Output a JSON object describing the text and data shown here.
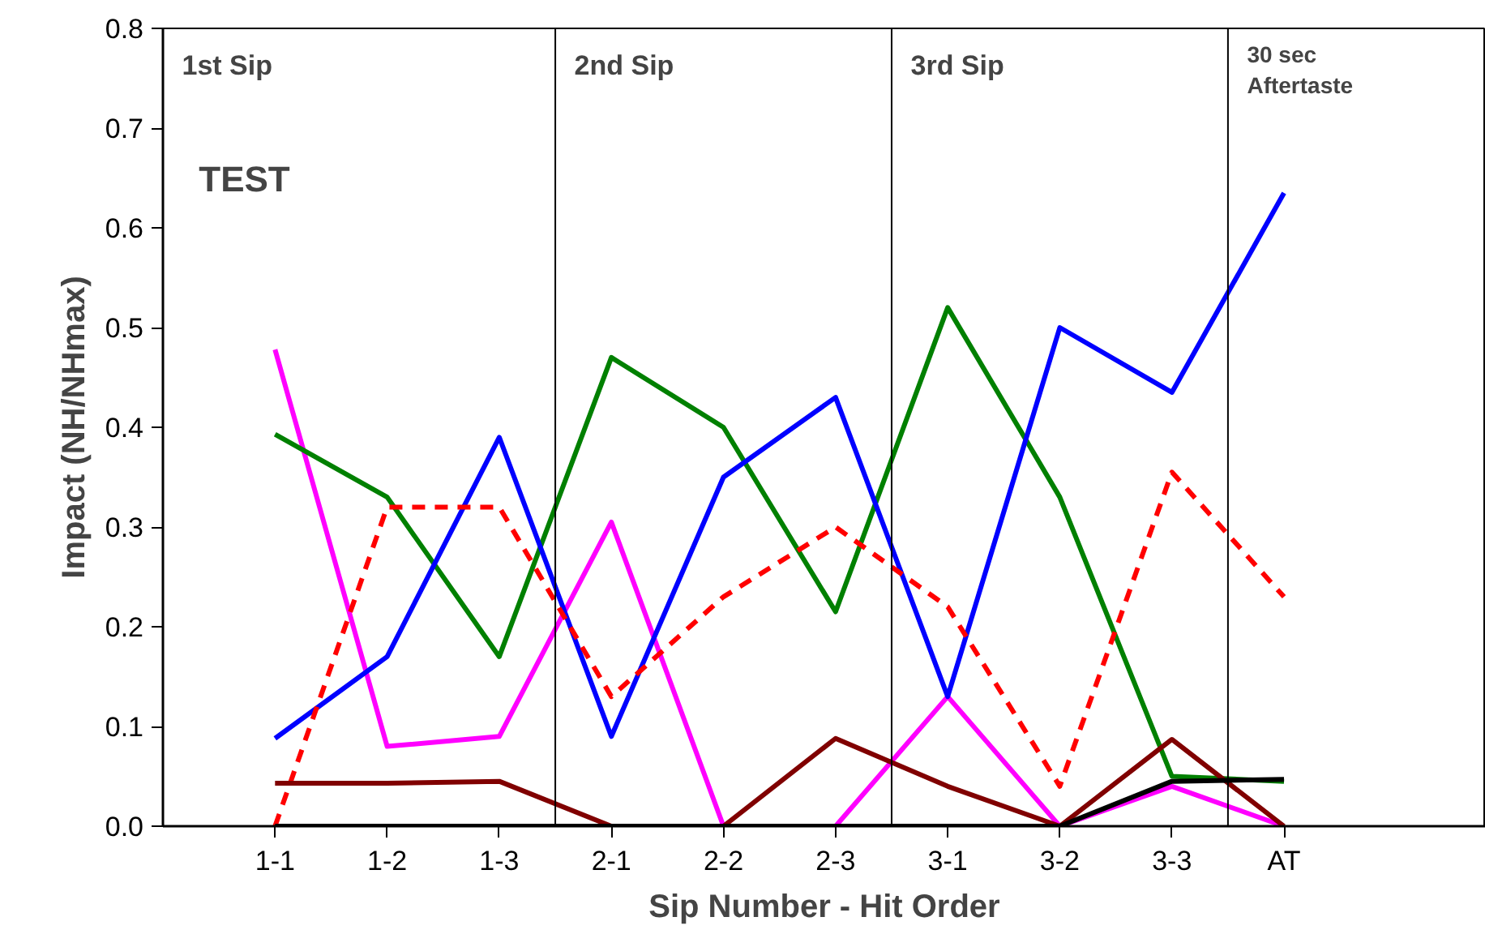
{
  "chart_data": {
    "type": "line",
    "xlabel": "Sip Number - Hit Order",
    "ylabel": "Impact (NH/NHmax)",
    "categories": [
      "1-1",
      "1-2",
      "1-3",
      "2-1",
      "2-2",
      "2-3",
      "3-1",
      "3-2",
      "3-3",
      "AT"
    ],
    "ylim": [
      0,
      0.8
    ],
    "yticks": [
      {
        "value": 0,
        "label": "0.0"
      },
      0.1,
      0.2,
      0.3,
      0.4,
      0.5,
      0.6,
      0.7,
      0.8
    ],
    "series": [
      {
        "color": "#ff00ff",
        "values": [
          0.478,
          0.08,
          0.09,
          0.305,
          0,
          0,
          0.13,
          0,
          0.04,
          0
        ]
      },
      {
        "color": "#008000",
        "values": [
          0.393,
          0.33,
          0.17,
          0.47,
          0.4,
          0.215,
          0.52,
          0.33,
          0.05,
          0.045
        ]
      },
      {
        "color": "#0000ff",
        "values": [
          0.088,
          0.17,
          0.39,
          0.09,
          0.35,
          0.43,
          0.13,
          0.5,
          0.435,
          0.635
        ]
      },
      {
        "color": "#ff0000",
        "line_style": "dashed",
        "values": [
          0,
          0.32,
          0.32,
          0.13,
          0.23,
          0.3,
          0.22,
          0.04,
          0.355,
          0.23
        ]
      },
      {
        "color": "#800000",
        "values": [
          0.043,
          0.043,
          0.045,
          0,
          0,
          0.088,
          0.04,
          0,
          0.087,
          0
        ]
      },
      {
        "color": "#000000",
        "values": [
          0,
          0,
          0,
          0,
          0,
          0,
          0,
          0,
          0.045,
          0.047
        ]
      }
    ],
    "line_style": "solid",
    "annotations": [
      "1st Sip",
      "2nd Sip",
      "3rd Sip",
      "30 sec\nAftertaste",
      "TEST"
    ],
    "grid": false
  }
}
